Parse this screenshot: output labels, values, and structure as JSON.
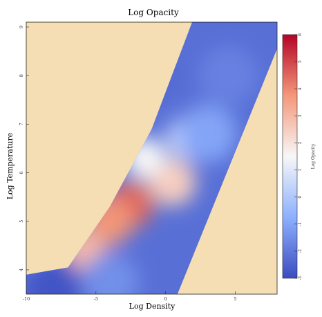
{
  "chart_data": {
    "type": "heatmap",
    "title": "Log Opacity",
    "xlabel": "Log Density",
    "ylabel": "Log Temperature",
    "colorbar_label": "Log Opacity",
    "xlim": [
      -10,
      8
    ],
    "ylim": [
      3.5,
      9.1
    ],
    "x_ticks": [
      "-10",
      "-5",
      "0",
      "5"
    ],
    "y_ticks": [
      "4",
      "5",
      "6",
      "7",
      "8",
      "9"
    ],
    "colorbar_range": [
      -3,
      6
    ],
    "colorbar_ticks": [
      "-3",
      "-2",
      "-1",
      "0",
      "1",
      "2",
      "3",
      "4",
      "5",
      "6"
    ],
    "colormap": "coolwarm",
    "colorbar_colors": [
      "#3b4cc0",
      "#8db0fe",
      "#f7f7f7",
      "#f4987a",
      "#b40426"
    ],
    "missing_color": "#f5deb3",
    "grid": false,
    "valid_region": [
      [
        -10,
        3.9
      ],
      [
        -7,
        4.05
      ],
      [
        -4,
        5.3
      ],
      [
        -1,
        6.9
      ],
      [
        1.9,
        9.1
      ],
      [
        8,
        9.1
      ],
      [
        8,
        8.55
      ],
      [
        0.85,
        3.5
      ],
      [
        -10,
        3.5
      ]
    ],
    "approx_values": [
      {
        "x": -2.5,
        "y": 5.35,
        "value": 4.5
      },
      {
        "x": -4.0,
        "y": 5.0,
        "value": 3.8
      },
      {
        "x": -6.0,
        "y": 4.35,
        "value": 3.0
      },
      {
        "x": 0.5,
        "y": 5.8,
        "value": 2.5
      },
      {
        "x": -1.5,
        "y": 6.3,
        "value": 1.5
      },
      {
        "x": 1.5,
        "y": 6.7,
        "value": 0.5
      },
      {
        "x": 3.0,
        "y": 6.8,
        "value": -1.0
      },
      {
        "x": 4.5,
        "y": 8.0,
        "value": -1.8
      },
      {
        "x": -1.0,
        "y": 8.0,
        "value": -2.3
      },
      {
        "x": -6.0,
        "y": 6.0,
        "value": -2.2
      },
      {
        "x": -9.0,
        "y": 4.5,
        "value": -1.8
      },
      {
        "x": -4.0,
        "y": 3.75,
        "value": -1.5
      },
      {
        "x": -8.0,
        "y": 3.65,
        "value": -2.8
      }
    ]
  }
}
